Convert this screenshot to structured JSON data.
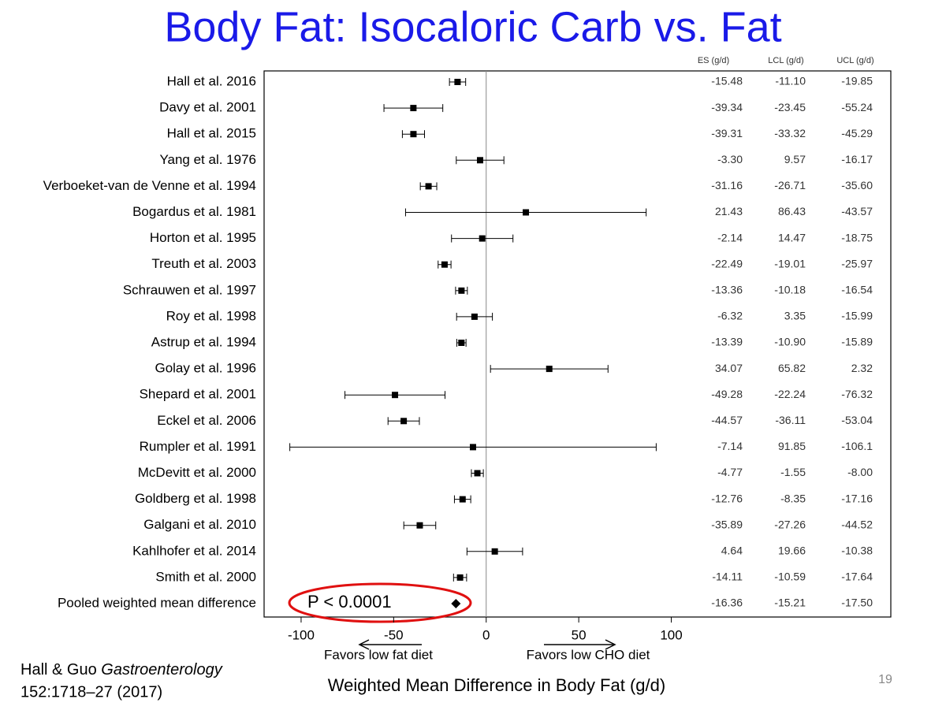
{
  "chart_data": {
    "type": "forest",
    "title": "Body Fat: Isocaloric Carb vs. Fat",
    "xlabel": "Weighted Mean Difference in Body Fat (g/d)",
    "categories": [
      "Hall et al. 2016",
      "Davy et al. 2001",
      "Hall et al. 2015",
      "Yang et al. 1976",
      "Verboeket-van de Venne et al. 1994",
      "Bogardus et al. 1981",
      "Horton et al. 1995",
      "Treuth et al. 2003",
      "Schrauwen et al. 1997",
      "Roy et al. 1998",
      "Astrup et al. 1994",
      "Golay et al. 1996",
      "Shepard et al. 2001",
      "Eckel et al. 2006",
      "Rumpler et al. 1991",
      "McDevitt et al. 2000",
      "Goldberg et al. 1998",
      "Galgani et al. 2010",
      "Kahlhofer et al. 2014",
      "Smith et al. 2000",
      "Pooled weighted mean difference"
    ],
    "series": [
      {
        "name": "ES (g/d)",
        "color": "#000000",
        "values": [
          -15.48,
          -39.34,
          -39.31,
          -3.3,
          -31.16,
          21.43,
          -2.14,
          -22.49,
          -13.36,
          -6.32,
          -13.39,
          34.07,
          -49.28,
          -44.57,
          -7.14,
          -4.77,
          -12.76,
          -35.89,
          4.64,
          -14.11,
          -16.36
        ],
        "value_labels": [
          "-15.48",
          "-39.34",
          "-39.31",
          "-3.30",
          "-31.16",
          "21.43",
          "-2.14",
          "-22.49",
          "-13.36",
          "-6.32",
          "-13.39",
          "34.07",
          "-49.28",
          "-44.57",
          "-7.14",
          "-4.77",
          "-12.76",
          "-35.89",
          "4.64",
          "-14.11",
          "-16.36"
        ]
      },
      {
        "name": "LCL (g/d)",
        "color": "#000000",
        "values": [
          -11.1,
          -23.45,
          -33.32,
          9.57,
          -26.71,
          86.43,
          14.47,
          -19.01,
          -10.18,
          3.35,
          -10.9,
          65.82,
          -22.24,
          -36.11,
          91.85,
          -1.55,
          -8.35,
          -27.26,
          19.66,
          -10.59,
          -15.21
        ],
        "value_labels": [
          "-11.10",
          "-23.45",
          "-33.32",
          "9.57",
          "-26.71",
          "86.43",
          "14.47",
          "-19.01",
          "-10.18",
          "3.35",
          "-10.90",
          "65.82",
          "-22.24",
          "-36.11",
          "91.85",
          "-1.55",
          "-8.35",
          "-27.26",
          "19.66",
          "-10.59",
          "-15.21"
        ]
      },
      {
        "name": "UCL (g/d)",
        "color": "#000000",
        "values": [
          -19.85,
          -55.24,
          -45.29,
          -16.17,
          -35.6,
          -43.57,
          -18.75,
          -25.97,
          -16.54,
          -15.99,
          -15.89,
          2.32,
          -76.32,
          -53.04,
          -106.1,
          -8,
          -17.16,
          -44.52,
          -10.38,
          -17.64,
          -17.5
        ],
        "value_labels": [
          "-19.85",
          "-55.24",
          "-45.29",
          "-16.17",
          "-35.60",
          "-43.57",
          "-18.75",
          "-25.97",
          "-16.54",
          "-15.99",
          "-15.89",
          "2.32",
          "-76.32",
          "-53.04",
          "-106.1",
          "-8.00",
          "-17.16",
          "-44.52",
          "-10.38",
          "-17.64",
          "-17.50"
        ]
      }
    ],
    "xlim": [
      -120,
      110
    ],
    "xticks": [
      -100,
      -50,
      0,
      50,
      100
    ],
    "reference_line": 0,
    "annotation": "P < 0.0001",
    "left_direction": "Favors low fat diet",
    "right_direction": "Favors low CHO diet"
  },
  "citation": {
    "authors": "Hall & Guo",
    "journal": "Gastroenterology",
    "reference": "152:1718–27 (2017)"
  },
  "slide_number": "19"
}
